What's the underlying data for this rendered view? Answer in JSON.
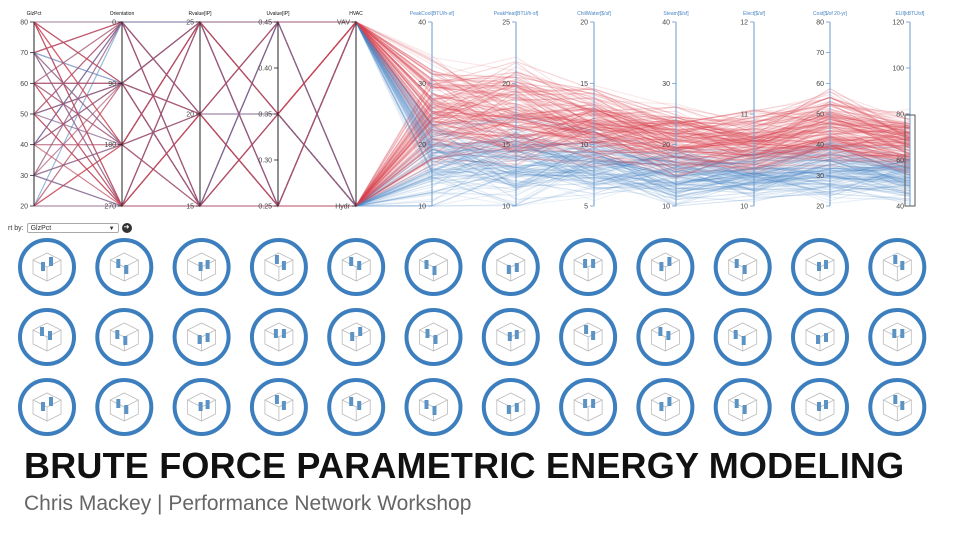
{
  "chart_data": {
    "type": "parallel-coordinates",
    "axes": [
      {
        "label": "GlzPct",
        "ticks": [
          "80",
          "70",
          "60",
          "50",
          "40",
          "30",
          "20"
        ],
        "range": [
          20,
          80
        ],
        "color": "#111111"
      },
      {
        "label": "Orientation",
        "ticks": [
          "0",
          "90",
          "180",
          "270"
        ],
        "range": [
          0,
          270
        ],
        "color": "#111111"
      },
      {
        "label": "Rvalue[IP]",
        "ticks": [
          "25",
          "20",
          "15"
        ],
        "range": [
          15,
          30
        ],
        "color": "#111111"
      },
      {
        "label": "Uvalue[IP]",
        "ticks": [
          "0.45",
          "0.40",
          "0.35",
          "0.30",
          "0.25"
        ],
        "range": [
          0.25,
          0.45
        ],
        "color": "#111111"
      },
      {
        "label": "HVAC",
        "ticks": [
          "VAV",
          "Hydr"
        ],
        "range": [
          0,
          1
        ],
        "color": "#111111"
      },
      {
        "label": "PeakCool[BTU/h-sf]",
        "ticks": [
          "40",
          "30",
          "20",
          "10"
        ],
        "range": [
          10,
          45
        ],
        "color": "#4a86c5"
      },
      {
        "label": "PeakHeat[BTU/h-sf]",
        "ticks": [
          "25",
          "20",
          "15",
          "10"
        ],
        "range": [
          8,
          26
        ],
        "color": "#4a86c5"
      },
      {
        "label": "ChillWater[$/sf]",
        "ticks": [
          "20",
          "15",
          "10",
          "5"
        ],
        "range": [
          3,
          25
        ],
        "color": "#4a86c5"
      },
      {
        "label": "Steam[$/sf]",
        "ticks": [
          "40",
          "30",
          "20",
          "10"
        ],
        "range": [
          8,
          48
        ],
        "color": "#4a86c5"
      },
      {
        "label": "Elect[$/sf]",
        "ticks": [
          "12",
          "11",
          "10"
        ],
        "range": [
          9,
          12.5
        ],
        "color": "#4a86c5"
      },
      {
        "label": "Cost[$/sf 20-yr]",
        "ticks": [
          "80",
          "70",
          "60",
          "50",
          "40",
          "30",
          "20"
        ],
        "range": [
          18,
          85
        ],
        "color": "#4a86c5"
      },
      {
        "label": "EUI[kBTU/sf]",
        "ticks": [
          "120",
          "100",
          "80",
          "60",
          "40"
        ],
        "range": [
          30,
          130
        ],
        "color": "#4a86c5"
      }
    ],
    "colors": {
      "high": "#d9424e",
      "low": "#4a86c5"
    }
  },
  "sort_control": {
    "label": "rt by:",
    "selected": "GlzPct",
    "go_icon": "arrow-icon"
  },
  "grid": {
    "rows": 3,
    "cols": 12,
    "icon": "building-massing-icon",
    "ring_color": "#3d7fbe",
    "window_color": "#5b93c5"
  },
  "title": "BRUTE FORCE PARAMETRIC ENERGY MODELING",
  "subtitle": "Chris Mackey | Performance Network Workshop"
}
